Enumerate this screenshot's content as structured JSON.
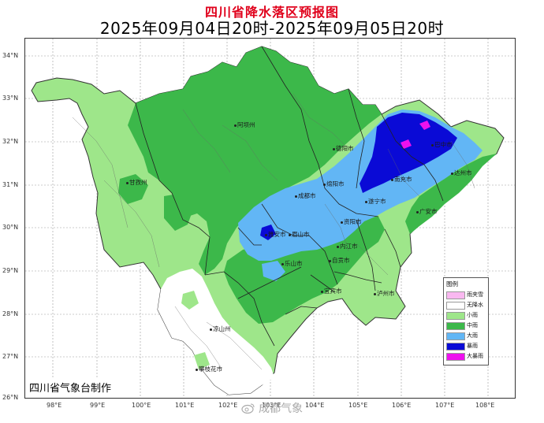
{
  "title": "四川省降水落区预报图",
  "subtitle": "2025年09月04日20时-2025年09月05日20时",
  "producer": "四川省气象台制作",
  "watermark": "成都气象",
  "lat_labels": [
    "34°N",
    "33°N",
    "32°N",
    "31°N",
    "30°N",
    "29°N",
    "28°N",
    "27°N",
    "26°N"
  ],
  "lon_labels": [
    "98°E",
    "99°E",
    "100°E",
    "101°E",
    "102°E",
    "103°E",
    "104°E",
    "105°E",
    "106°E",
    "107°E",
    "108°E"
  ],
  "cities": [
    {
      "name": "阿坝州"
    },
    {
      "name": "甘孜州"
    },
    {
      "name": "德阳市"
    },
    {
      "name": "绵阳市"
    },
    {
      "name": "巴中市"
    },
    {
      "name": "南充市"
    },
    {
      "name": "达州市"
    },
    {
      "name": "成都市"
    },
    {
      "name": "遂宁市"
    },
    {
      "name": "广安市"
    },
    {
      "name": "资阳市"
    },
    {
      "name": "雅安市"
    },
    {
      "name": "眉山市"
    },
    {
      "name": "内江市"
    },
    {
      "name": "乐山市"
    },
    {
      "name": "自贡市"
    },
    {
      "name": "宜宾市"
    },
    {
      "name": "泸州市"
    },
    {
      "name": "凉山州"
    },
    {
      "name": "攀枝花市"
    }
  ],
  "legend": {
    "title": "图例",
    "items": [
      {
        "label": "雨夹雪",
        "color": "#f9b8f0"
      },
      {
        "label": "无降水",
        "color": "#ffffff"
      },
      {
        "label": "小雨",
        "color": "#9ee68a"
      },
      {
        "label": "中雨",
        "color": "#3cb84a"
      },
      {
        "label": "大雨",
        "color": "#62b6f5"
      },
      {
        "label": "暴雨",
        "color": "#0a0ad6"
      },
      {
        "label": "大暴雨",
        "color": "#ee11ee"
      }
    ]
  }
}
